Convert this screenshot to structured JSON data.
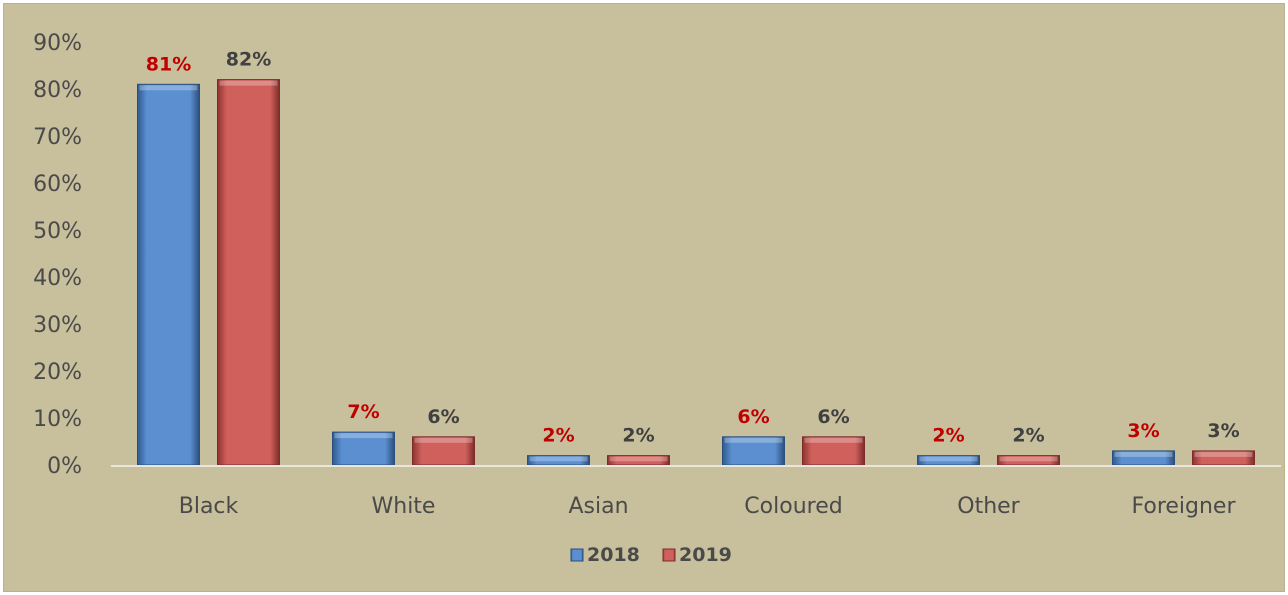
{
  "chart_data": {
    "type": "bar",
    "categories": [
      "Black",
      "White",
      "Asian",
      "Coloured",
      "Other",
      "Foreigner"
    ],
    "series": [
      {
        "name": "2018",
        "values": [
          81,
          7,
          2,
          6,
          2,
          3
        ],
        "labels": [
          "81%",
          "7%",
          "2%",
          "6%",
          "2%",
          "3%"
        ],
        "color": "#4f81bd",
        "label_color": "#c00000"
      },
      {
        "name": "2019",
        "values": [
          82,
          6,
          2,
          6,
          2,
          3
        ],
        "labels": [
          "82%",
          "6%",
          "2%",
          "6%",
          "2%",
          "3%"
        ],
        "color": "#c0504d",
        "label_color": "#404040"
      }
    ],
    "ylim": [
      0,
      90
    ],
    "yticks": [
      "0%",
      "10%",
      "20%",
      "30%",
      "40%",
      "50%",
      "60%",
      "70%",
      "80%",
      "90%"
    ],
    "title": "",
    "xlabel": "",
    "ylabel": "",
    "grid": false,
    "legend": "bottom-center",
    "background": "#c8bf9c"
  }
}
